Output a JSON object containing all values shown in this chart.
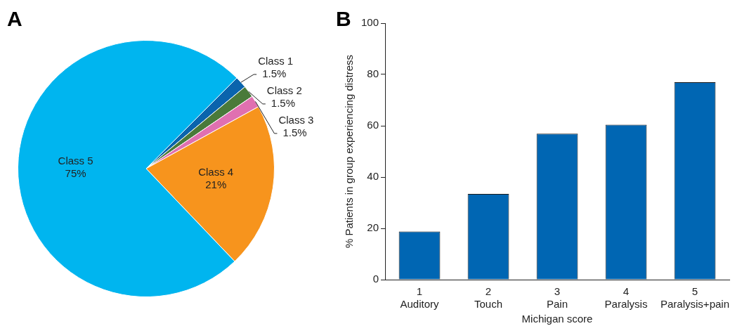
{
  "chart_data": [
    {
      "type": "pie",
      "title": "A",
      "categories": [
        "Class 1",
        "Class 2",
        "Class 3",
        "Class 4",
        "Class 5"
      ],
      "values": [
        1.5,
        1.5,
        1.5,
        21,
        75
      ],
      "colors": [
        "#0a64ad",
        "#4a7a3a",
        "#e070b0",
        "#f7941d",
        "#00b5ef"
      ],
      "value_labels": [
        "1.5%",
        "1.5%",
        "1.5%",
        "21%",
        "75%"
      ],
      "legend": false
    },
    {
      "type": "bar",
      "title": "B",
      "categories": [
        "1\nAuditory",
        "2\nTouch",
        "3\nPain",
        "4\nParalysis",
        "5\nParalysis+pain"
      ],
      "values": [
        18.8,
        33.4,
        56.9,
        60.4,
        77.0
      ],
      "color": "#0066b3",
      "ylim": [
        0,
        100
      ],
      "yticks": [
        0,
        20,
        40,
        60,
        80,
        100
      ],
      "xlabel": "Michigan score",
      "ylabel": "% Patients in group experiencing distress",
      "grid": false,
      "legend": false
    }
  ]
}
